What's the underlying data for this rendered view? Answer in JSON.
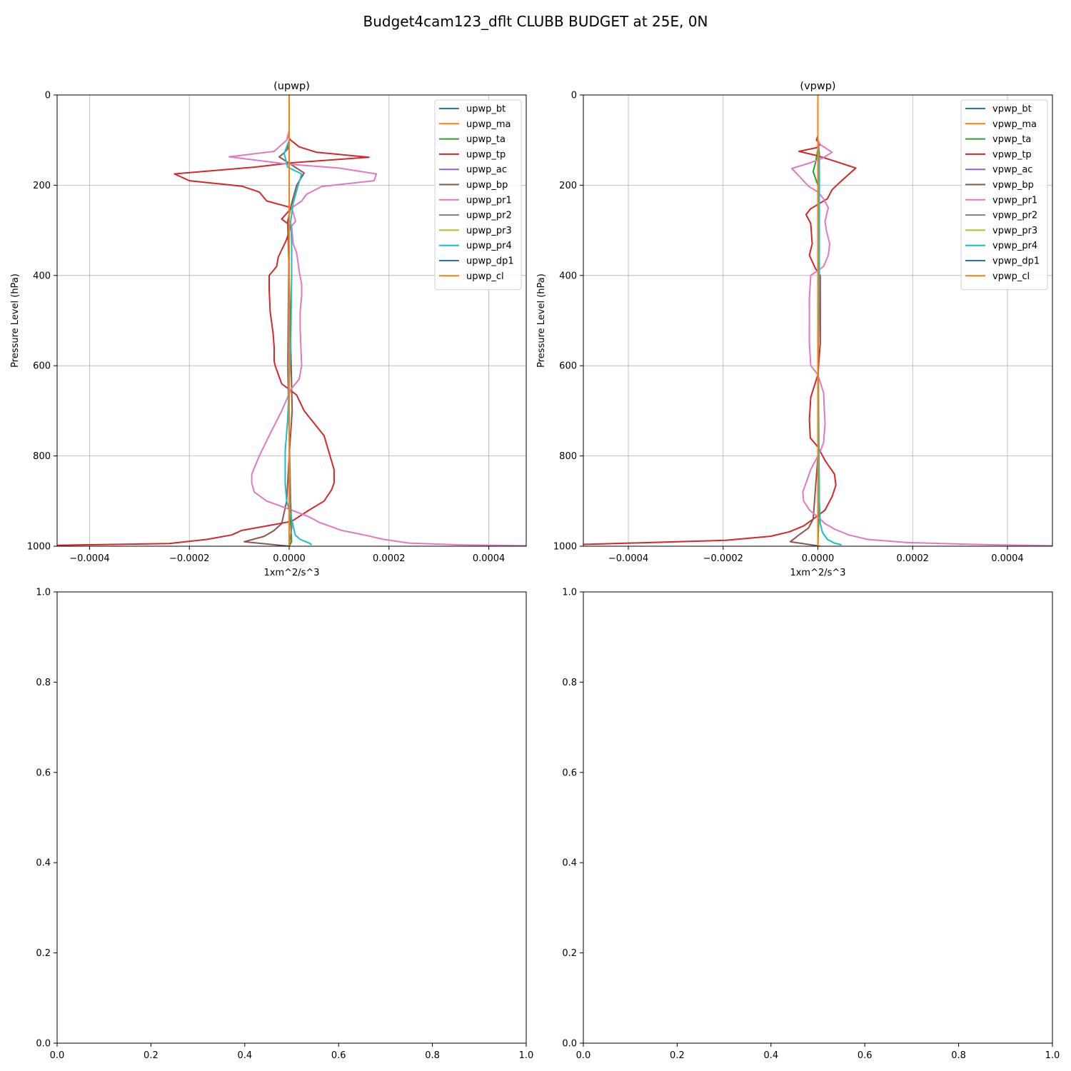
{
  "figure_title": "Budget4cam123_dflt CLUBB BUDGET at 25E, 0N",
  "chart_data": [
    {
      "type": "line",
      "title": "(upwp)",
      "xlabel": "1xm^2/s^3",
      "ylabel": "Pressure Level (hPa)",
      "xlim": [
        -0.000465,
        0.000475
      ],
      "ylim": [
        1000,
        0
      ],
      "y_inverted": true,
      "grid": true,
      "legend_position": "upper right",
      "xticks": [
        -0.0004,
        -0.0002,
        0.0,
        0.0002,
        0.0004
      ],
      "xtick_labels": [
        "−0.0004",
        "−0.0002",
        "0.0000",
        "0.0002",
        "0.0004"
      ],
      "yticks": [
        0,
        200,
        400,
        600,
        800,
        1000
      ],
      "ytick_labels": [
        "0",
        "200",
        "400",
        "600",
        "800",
        "1000"
      ],
      "series": [
        {
          "name": "upwp_bt",
          "color": "#1f77b4",
          "x": [
            0,
            0,
            0,
            0,
            0
          ],
          "y": [
            0,
            200,
            500,
            800,
            1000
          ]
        },
        {
          "name": "upwp_ma",
          "color": "#ff7f0e",
          "x": [
            0,
            0,
            0,
            0,
            0
          ],
          "y": [
            0,
            200,
            500,
            800,
            1000
          ]
        },
        {
          "name": "upwp_ta",
          "color": "#2ca02c",
          "x": [
            0,
            0,
            0,
            0,
            0,
            3e-06,
            5e-06,
            0
          ],
          "y": [
            0,
            200,
            500,
            800,
            900,
            950,
            990,
            1000
          ]
        },
        {
          "name": "upwp_tp",
          "color": "#d62728",
          "x": [
            0,
            0,
            -3e-06,
            3e-06,
            2e-05,
            5.5e-05,
            0.00016,
            1e-05,
            -7e-05,
            -0.00023,
            -0.0002,
            -9.5e-05,
            -6e-05,
            -4.5e-05,
            5e-06,
            -1.5e-05,
            3e-06,
            -5e-06,
            -2.2e-05,
            -2.5e-05,
            -4e-05,
            -4e-05,
            -3.8e-05,
            -3.2e-05,
            -3e-05,
            -3e-05,
            -2.8e-05,
            -1.5e-05,
            1.5e-05,
            3e-05,
            7e-05,
            9e-05,
            9e-05,
            8.5e-05,
            7e-05,
            4e-05,
            5e-06,
            -6e-05,
            -9.5e-05,
            -0.000115,
            -0.000165,
            -0.00024,
            -0.000465
          ],
          "y": [
            0,
            80,
            92,
            100,
            115,
            127,
            138,
            150,
            160,
            175,
            190,
            202,
            215,
            235,
            250,
            275,
            290,
            320,
            360,
            380,
            400,
            430,
            480,
            530,
            560,
            590,
            600,
            640,
            665,
            700,
            755,
            830,
            860,
            875,
            900,
            920,
            945,
            958,
            965,
            975,
            985,
            994,
            998
          ]
        },
        {
          "name": "upwp_ac",
          "color": "#9467bd",
          "x": [
            0,
            0,
            0,
            0
          ],
          "y": [
            0,
            300,
            700,
            1000
          ]
        },
        {
          "name": "upwp_bp",
          "color": "#8c564b",
          "x": [
            0,
            0,
            -3e-06,
            -1.2e-05,
            -2e-05,
            3e-05,
            1.5e-05,
            5e-06,
            -3e-06,
            0,
            4e-06,
            6e-06,
            0,
            -5e-06,
            -1.5e-05,
            -3e-05,
            -5e-05,
            -9e-05,
            0
          ],
          "y": [
            0,
            100,
            120,
            130,
            137,
            173,
            200,
            240,
            280,
            400,
            600,
            700,
            800,
            900,
            950,
            965,
            978,
            990,
            1000
          ]
        },
        {
          "name": "upwp_pr1",
          "color": "#e377c2",
          "x": [
            0,
            0,
            -5e-06,
            -3e-05,
            -0.00012,
            -5e-06,
            0.0001,
            0.000175,
            0.00017,
            6.5e-05,
            3.5e-05,
            2.5e-05,
            5e-06,
            1.3e-05,
            5e-06,
            8e-06,
            1.5e-05,
            2e-05,
            2.5e-05,
            2.5e-05,
            2.2e-05,
            2.2e-05,
            2.5e-05,
            2e-05,
            5e-06,
            -3e-06,
            -1.5e-05,
            -4e-05,
            -6e-05,
            -7.5e-05,
            -7.5e-05,
            -7e-05,
            -4.5e-05,
            5e-06,
            4e-05,
            6e-05,
            8.5e-05,
            0.000105,
            0.00015,
            0.00019,
            0.00024,
            0.00034,
            0.000475
          ],
          "y": [
            0,
            80,
            100,
            125,
            137,
            153,
            162,
            175,
            190,
            203,
            220,
            235,
            250,
            280,
            290,
            330,
            350,
            390,
            420,
            445,
            480,
            520,
            600,
            630,
            650,
            670,
            700,
            755,
            800,
            840,
            860,
            880,
            900,
            920,
            935,
            947,
            957,
            965,
            975,
            985,
            993,
            997,
            999
          ]
        },
        {
          "name": "upwp_pr2",
          "color": "#7f7f7f",
          "x": [
            0,
            0,
            -3e-06,
            3e-06,
            5e-06,
            0
          ],
          "y": [
            0,
            300,
            600,
            900,
            960,
            1000
          ]
        },
        {
          "name": "upwp_pr3",
          "color": "#bcbd22",
          "x": [
            0,
            0,
            0,
            0
          ],
          "y": [
            0,
            400,
            800,
            1000
          ]
        },
        {
          "name": "upwp_pr4",
          "color": "#17becf",
          "x": [
            0,
            0,
            -1e-05,
            -3e-06,
            2.5e-05,
            1.8e-05,
            8e-06,
            3e-06,
            5e-06,
            5e-06,
            4e-06,
            3e-06,
            0,
            -3e-06,
            -8e-06,
            -8e-06,
            -5e-06,
            3e-06,
            8e-06,
            1.2e-05,
            2.2e-05,
            4e-05,
            4.5e-05
          ],
          "y": [
            0,
            100,
            130,
            160,
            175,
            200,
            240,
            280,
            330,
            400,
            480,
            560,
            640,
            720,
            790,
            860,
            900,
            930,
            955,
            975,
            985,
            993,
            997
          ]
        },
        {
          "name": "upwp_dp1",
          "color": "#1f77b4",
          "x": [
            0,
            0,
            0,
            0
          ],
          "y": [
            0,
            300,
            700,
            1000
          ]
        },
        {
          "name": "upwp_cl",
          "color": "#ff7f0e",
          "x": [
            0,
            0,
            0,
            0
          ],
          "y": [
            0,
            300,
            700,
            1000
          ]
        }
      ]
    },
    {
      "type": "line",
      "title": "(vpwp)",
      "xlabel": "1xm^2/s^3",
      "ylabel": "Pressure Level (hPa)",
      "xlim": [
        -0.000495,
        0.000495
      ],
      "ylim": [
        1000,
        0
      ],
      "y_inverted": true,
      "grid": true,
      "legend_position": "upper right",
      "xticks": [
        -0.0004,
        -0.0002,
        0.0,
        0.0002,
        0.0004
      ],
      "xtick_labels": [
        "−0.0004",
        "−0.0002",
        "0.0000",
        "0.0002",
        "0.0004"
      ],
      "yticks": [
        0,
        200,
        400,
        600,
        800,
        1000
      ],
      "ytick_labels": [
        "0",
        "200",
        "400",
        "600",
        "800",
        "1000"
      ],
      "series": [
        {
          "name": "vpwp_bt",
          "color": "#1f77b4",
          "x": [
            0,
            0,
            0,
            0,
            0
          ],
          "y": [
            0,
            200,
            500,
            800,
            1000
          ]
        },
        {
          "name": "vpwp_ma",
          "color": "#ff7f0e",
          "x": [
            0,
            0,
            0,
            0,
            0
          ],
          "y": [
            0,
            200,
            500,
            800,
            1000
          ]
        },
        {
          "name": "vpwp_ta",
          "color": "#2ca02c",
          "x": [
            0,
            0,
            -5e-06,
            -1e-05,
            0,
            0,
            3e-06,
            0
          ],
          "y": [
            0,
            120,
            150,
            170,
            200,
            500,
            900,
            1000
          ]
        },
        {
          "name": "vpwp_tp",
          "color": "#d62728",
          "x": [
            0,
            0,
            -3e-06,
            5e-06,
            -3e-06,
            -4e-05,
            0,
            3e-05,
            6e-05,
            8e-05,
            5e-05,
            3e-05,
            2e-05,
            -1.5e-05,
            -2.5e-05,
            -1.5e-05,
            -1.2e-05,
            -1.8e-05,
            -5e-06,
            5e-06,
            5e-06,
            5e-06,
            0,
            -1.5e-05,
            -1.8e-05,
            -1.6e-05,
            0,
            1.5e-05,
            3.5e-05,
            3.8e-05,
            3e-05,
            1.5e-05,
            -1e-05,
            -3e-05,
            -6e-05,
            -0.0001,
            -0.000195,
            -0.000495
          ],
          "y": [
            0,
            90,
            100,
            110,
            117,
            125,
            135,
            145,
            155,
            162,
            190,
            210,
            230,
            252,
            265,
            285,
            330,
            355,
            385,
            400,
            440,
            550,
            620,
            670,
            720,
            760,
            780,
            810,
            840,
            865,
            890,
            920,
            940,
            955,
            968,
            978,
            987,
            996
          ]
        },
        {
          "name": "vpwp_ac",
          "color": "#9467bd",
          "x": [
            0,
            0,
            0,
            0
          ],
          "y": [
            0,
            300,
            700,
            1000
          ]
        },
        {
          "name": "vpwp_bp",
          "color": "#8c564b",
          "x": [
            0,
            0,
            3e-06,
            3e-06,
            0,
            0,
            -1e-05,
            -2e-05,
            -4e-05,
            -5.8e-05,
            5e-06
          ],
          "y": [
            0,
            100,
            130,
            200,
            400,
            800,
            940,
            960,
            975,
            990,
            1000
          ]
        },
        {
          "name": "vpwp_pr1",
          "color": "#e377c2",
          "x": [
            0,
            0,
            5e-06,
            3e-05,
            1e-05,
            -1.5e-05,
            -5.5e-05,
            -3.5e-05,
            -2e-05,
            0,
            1.2e-05,
            2.2e-05,
            1.5e-05,
            1.8e-05,
            2.5e-05,
            2.2e-05,
            1.2e-05,
            -1.5e-05,
            -1.8e-05,
            -1.8e-05,
            -1.5e-05,
            0,
            1.2e-05,
            1.5e-05,
            1.2e-05,
            5e-06,
            -1.5e-05,
            -2.5e-05,
            -3.2e-05,
            -3e-05,
            -1.8e-05,
            0,
            1.5e-05,
            3.5e-05,
            6.5e-05,
            0.000105,
            0.00019,
            0.00033,
            0.000495
          ],
          "y": [
            0,
            100,
            110,
            127,
            140,
            150,
            163,
            185,
            202,
            215,
            230,
            250,
            280,
            300,
            330,
            355,
            380,
            400,
            450,
            550,
            600,
            620,
            660,
            730,
            770,
            790,
            830,
            860,
            880,
            900,
            920,
            935,
            950,
            962,
            975,
            985,
            992,
            996,
            999
          ]
        },
        {
          "name": "vpwp_pr2",
          "color": "#7f7f7f",
          "x": [
            0,
            0,
            0,
            0
          ],
          "y": [
            0,
            300,
            700,
            1000
          ]
        },
        {
          "name": "vpwp_pr3",
          "color": "#bcbd22",
          "x": [
            0,
            0,
            0,
            0
          ],
          "y": [
            0,
            300,
            700,
            1000
          ]
        },
        {
          "name": "vpwp_pr4",
          "color": "#17becf",
          "x": [
            0,
            0,
            3e-06,
            3e-06,
            3e-06,
            3e-06,
            2e-06,
            0,
            2e-06,
            3e-06,
            5e-06,
            1e-05,
            2e-05,
            3.5e-05,
            5e-05
          ],
          "y": [
            0,
            100,
            160,
            200,
            300,
            400,
            500,
            600,
            800,
            900,
            950,
            970,
            985,
            993,
            997
          ]
        },
        {
          "name": "vpwp_dp1",
          "color": "#1f77b4",
          "x": [
            0,
            0,
            0,
            0
          ],
          "y": [
            0,
            300,
            700,
            1000
          ]
        },
        {
          "name": "vpwp_cl",
          "color": "#ff7f0e",
          "x": [
            0,
            0,
            0,
            0
          ],
          "y": [
            0,
            300,
            700,
            1000
          ]
        }
      ]
    },
    {
      "type": "line",
      "title": "",
      "xlabel": "",
      "ylabel": "",
      "xlim": [
        0,
        1
      ],
      "ylim": [
        0,
        1
      ],
      "y_inverted": false,
      "grid": false,
      "xticks": [
        0,
        0.2,
        0.4,
        0.6,
        0.8,
        1.0
      ],
      "xtick_labels": [
        "0.0",
        "0.2",
        "0.4",
        "0.6",
        "0.8",
        "1.0"
      ],
      "yticks": [
        0,
        0.2,
        0.4,
        0.6,
        0.8,
        1.0
      ],
      "ytick_labels": [
        "0.0",
        "0.2",
        "0.4",
        "0.6",
        "0.8",
        "1.0"
      ],
      "series": []
    },
    {
      "type": "line",
      "title": "",
      "xlabel": "",
      "ylabel": "",
      "xlim": [
        0,
        1
      ],
      "ylim": [
        0,
        1
      ],
      "y_inverted": false,
      "grid": false,
      "xticks": [
        0,
        0.2,
        0.4,
        0.6,
        0.8,
        1.0
      ],
      "xtick_labels": [
        "0.0",
        "0.2",
        "0.4",
        "0.6",
        "0.8",
        "1.0"
      ],
      "yticks": [
        0,
        0.2,
        0.4,
        0.6,
        0.8,
        1.0
      ],
      "ytick_labels": [
        "0.0",
        "0.2",
        "0.4",
        "0.6",
        "0.8",
        "1.0"
      ],
      "series": []
    }
  ]
}
